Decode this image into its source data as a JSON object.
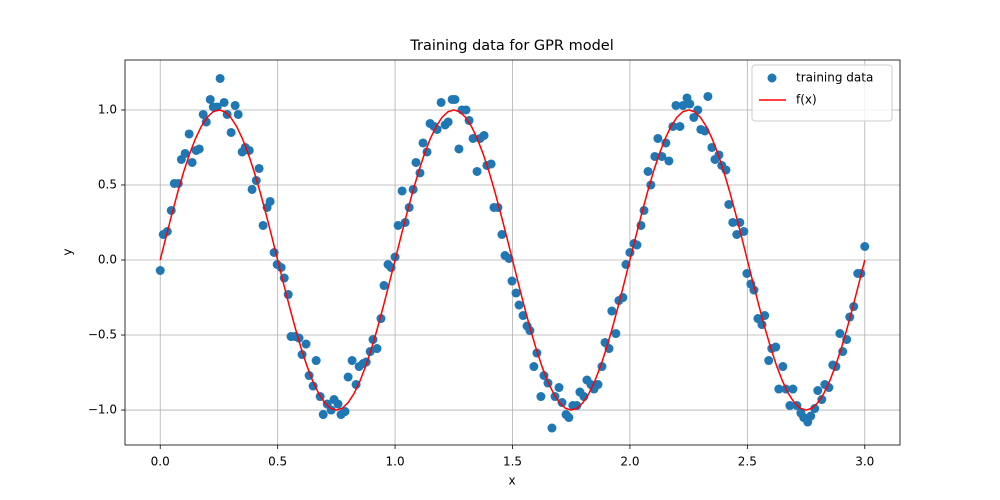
{
  "chart_data": {
    "type": "scatter",
    "title": "Training data for GPR model",
    "x_label": "x",
    "y_label": "y",
    "xlim": [
      -0.15,
      3.15
    ],
    "ylim": [
      -1.233,
      1.333
    ],
    "xticks": [
      {
        "value": 0,
        "label": "0.0"
      },
      {
        "value": 0.5,
        "label": "0.5"
      },
      {
        "value": 1,
        "label": "1.0"
      },
      {
        "value": 1.5,
        "label": "1.5"
      },
      {
        "value": 2,
        "label": "2.0"
      },
      {
        "value": 2.5,
        "label": "2.5"
      },
      {
        "value": 3,
        "label": "3.0"
      }
    ],
    "yticks": [
      {
        "value": -1,
        "label": "−1.0"
      },
      {
        "value": -0.5,
        "label": "−0.5"
      },
      {
        "value": 0,
        "label": "0.0"
      },
      {
        "value": 0.5,
        "label": "0.5"
      },
      {
        "value": 1,
        "label": "1.0"
      }
    ],
    "grid": true,
    "legend": "upper right",
    "series": [
      {
        "name": "training data",
        "type": "scatter",
        "color": "#1f77b4",
        "x": [
          0,
          0.013,
          0.03,
          0.047,
          0.06,
          0.077,
          0.09,
          0.106,
          0.123,
          0.136,
          0.153,
          0.166,
          0.183,
          0.196,
          0.213,
          0.226,
          0.243,
          0.255,
          0.272,
          0.285,
          0.302,
          0.319,
          0.332,
          0.349,
          0.362,
          0.379,
          0.391,
          0.409,
          0.421,
          0.438,
          0.455,
          0.468,
          0.485,
          0.498,
          0.515,
          0.528,
          0.545,
          0.557,
          0.574,
          0.591,
          0.604,
          0.621,
          0.634,
          0.651,
          0.664,
          0.681,
          0.694,
          0.711,
          0.728,
          0.74,
          0.757,
          0.77,
          0.787,
          0.8,
          0.817,
          0.834,
          0.847,
          0.864,
          0.877,
          0.894,
          0.906,
          0.923,
          0.94,
          0.953,
          0.97,
          0.983,
          1.0,
          1.013,
          1.03,
          1.043,
          1.06,
          1.077,
          1.089,
          1.106,
          1.119,
          1.136,
          1.149,
          1.166,
          1.179,
          1.196,
          1.213,
          1.226,
          1.243,
          1.255,
          1.272,
          1.285,
          1.302,
          1.315,
          1.332,
          1.349,
          1.362,
          1.379,
          1.391,
          1.409,
          1.421,
          1.438,
          1.455,
          1.468,
          1.485,
          1.498,
          1.515,
          1.528,
          1.545,
          1.562,
          1.574,
          1.591,
          1.604,
          1.621,
          1.634,
          1.651,
          1.668,
          1.681,
          1.698,
          1.711,
          1.728,
          1.74,
          1.757,
          1.774,
          1.787,
          1.804,
          1.817,
          1.834,
          1.847,
          1.864,
          1.881,
          1.894,
          1.911,
          1.923,
          1.94,
          1.953,
          1.97,
          1.983,
          2.0,
          2.017,
          2.03,
          2.047,
          2.06,
          2.077,
          2.089,
          2.106,
          2.119,
          2.136,
          2.153,
          2.166,
          2.183,
          2.196,
          2.213,
          2.226,
          2.243,
          2.255,
          2.272,
          2.289,
          2.302,
          2.319,
          2.332,
          2.349,
          2.362,
          2.379,
          2.391,
          2.409,
          2.421,
          2.438,
          2.455,
          2.468,
          2.485,
          2.498,
          2.515,
          2.528,
          2.545,
          2.562,
          2.574,
          2.591,
          2.604,
          2.621,
          2.634,
          2.651,
          2.664,
          2.681,
          2.694,
          2.711,
          2.728,
          2.74,
          2.757,
          2.77,
          2.787,
          2.8,
          2.817,
          2.83,
          2.847,
          2.864,
          2.877,
          2.894,
          2.906,
          2.923,
          2.936,
          2.953,
          2.97,
          2.983,
          3.0
        ],
        "values": [
          -0.07,
          0.17,
          0.19,
          0.33,
          0.51,
          0.51,
          0.67,
          0.71,
          0.84,
          0.65,
          0.73,
          0.74,
          0.97,
          0.92,
          1.07,
          1.02,
          1.02,
          1.21,
          1.05,
          0.97,
          0.85,
          1.03,
          0.97,
          0.72,
          0.75,
          0.73,
          0.47,
          0.53,
          0.61,
          0.23,
          0.35,
          0.39,
          0.05,
          -0.03,
          -0.05,
          -0.12,
          -0.23,
          -0.51,
          -0.51,
          -0.52,
          -0.63,
          -0.56,
          -0.77,
          -0.84,
          -0.67,
          -0.91,
          -1.03,
          -0.96,
          -1.0,
          -0.93,
          -0.96,
          -1.03,
          -1.01,
          -0.78,
          -0.67,
          -0.83,
          -0.71,
          -0.69,
          -0.68,
          -0.61,
          -0.53,
          -0.59,
          -0.39,
          -0.17,
          -0.03,
          -0.05,
          0.02,
          0.23,
          0.46,
          0.25,
          0.35,
          0.47,
          0.65,
          0.58,
          0.78,
          0.72,
          0.91,
          0.89,
          0.87,
          1.05,
          0.9,
          0.92,
          1.07,
          1.07,
          0.74,
          1.0,
          1.0,
          0.93,
          0.81,
          0.59,
          0.81,
          0.83,
          0.63,
          0.64,
          0.35,
          0.35,
          0.17,
          0.03,
          0.01,
          -0.14,
          -0.22,
          -0.3,
          -0.37,
          -0.44,
          -0.47,
          -0.71,
          -0.62,
          -0.91,
          -0.77,
          -0.82,
          -1.12,
          -0.91,
          -0.85,
          -0.95,
          -1.03,
          -1.05,
          -0.97,
          -0.97,
          -0.88,
          -0.91,
          -0.8,
          -0.83,
          -0.86,
          -0.83,
          -0.71,
          -0.55,
          -0.59,
          -0.34,
          -0.49,
          -0.27,
          -0.25,
          -0.03,
          0.05,
          0.11,
          0.1,
          0.23,
          0.33,
          0.59,
          0.5,
          0.69,
          0.81,
          0.69,
          0.78,
          0.66,
          0.89,
          1.03,
          0.89,
          1.03,
          1.08,
          1.04,
          0.95,
          1.0,
          0.87,
          0.86,
          1.09,
          0.75,
          0.67,
          0.7,
          0.63,
          0.6,
          0.37,
          0.25,
          0.17,
          0.25,
          0.19,
          -0.09,
          -0.16,
          -0.2,
          -0.39,
          -0.43,
          -0.37,
          -0.67,
          -0.59,
          -0.58,
          -0.86,
          -0.71,
          -0.86,
          -0.97,
          -0.86,
          -0.97,
          -1.02,
          -1.05,
          -1.08,
          -1.04,
          -0.99,
          -0.87,
          -0.93,
          -0.83,
          -0.85,
          -0.7,
          -0.71,
          -0.49,
          -0.61,
          -0.53,
          -0.38,
          -0.31,
          -0.09,
          -0.09,
          0.09
        ]
      },
      {
        "name": "f(x)",
        "type": "line",
        "color": "#ff0000",
        "x": [
          0,
          0.025,
          0.05,
          0.075,
          0.1,
          0.125,
          0.15,
          0.175,
          0.2,
          0.225,
          0.25,
          0.275,
          0.3,
          0.325,
          0.35,
          0.375,
          0.4,
          0.425,
          0.45,
          0.475,
          0.5,
          0.525,
          0.55,
          0.575,
          0.6,
          0.625,
          0.65,
          0.675,
          0.7,
          0.725,
          0.75,
          0.775,
          0.8,
          0.825,
          0.85,
          0.875,
          0.9,
          0.925,
          0.95,
          0.975,
          1.0,
          1.025,
          1.05,
          1.075,
          1.1,
          1.125,
          1.15,
          1.175,
          1.2,
          1.225,
          1.25,
          1.275,
          1.3,
          1.325,
          1.35,
          1.375,
          1.4,
          1.425,
          1.45,
          1.475,
          1.5,
          1.525,
          1.55,
          1.575,
          1.6,
          1.625,
          1.65,
          1.675,
          1.7,
          1.725,
          1.75,
          1.775,
          1.8,
          1.825,
          1.85,
          1.875,
          1.9,
          1.925,
          1.95,
          1.975,
          2.0,
          2.025,
          2.05,
          2.075,
          2.1,
          2.125,
          2.15,
          2.175,
          2.2,
          2.225,
          2.25,
          2.275,
          2.3,
          2.325,
          2.35,
          2.375,
          2.4,
          2.425,
          2.45,
          2.475,
          2.5,
          2.525,
          2.55,
          2.575,
          2.6,
          2.625,
          2.65,
          2.675,
          2.7,
          2.725,
          2.75,
          2.775,
          2.8,
          2.825,
          2.85,
          2.875,
          2.9,
          2.925,
          2.95,
          2.975,
          3.0
        ],
        "values": [
          0,
          0.156,
          0.309,
          0.454,
          0.588,
          0.707,
          0.809,
          0.891,
          0.951,
          0.988,
          1,
          0.988,
          0.951,
          0.891,
          0.809,
          0.707,
          0.588,
          0.454,
          0.309,
          0.156,
          0,
          -0.156,
          -0.309,
          -0.454,
          -0.588,
          -0.707,
          -0.809,
          -0.891,
          -0.951,
          -0.988,
          -1,
          -0.988,
          -0.951,
          -0.891,
          -0.809,
          -0.707,
          -0.588,
          -0.454,
          -0.309,
          -0.156,
          0,
          0.156,
          0.309,
          0.454,
          0.588,
          0.707,
          0.809,
          0.891,
          0.951,
          0.988,
          1,
          0.988,
          0.951,
          0.891,
          0.809,
          0.707,
          0.588,
          0.454,
          0.309,
          0.156,
          0,
          -0.156,
          -0.309,
          -0.454,
          -0.588,
          -0.707,
          -0.809,
          -0.891,
          -0.951,
          -0.988,
          -1,
          -0.988,
          -0.951,
          -0.891,
          -0.809,
          -0.707,
          -0.588,
          -0.454,
          -0.309,
          -0.156,
          0,
          0.156,
          0.309,
          0.454,
          0.588,
          0.707,
          0.809,
          0.891,
          0.951,
          0.988,
          1,
          0.988,
          0.951,
          0.891,
          0.809,
          0.707,
          0.588,
          0.454,
          0.309,
          0.156,
          0,
          -0.156,
          -0.309,
          -0.454,
          -0.588,
          -0.707,
          -0.809,
          -0.891,
          -0.951,
          -0.988,
          -1,
          -0.988,
          -0.951,
          -0.891,
          -0.809,
          -0.707,
          -0.588,
          -0.454,
          -0.309,
          -0.156,
          0
        ]
      }
    ]
  }
}
